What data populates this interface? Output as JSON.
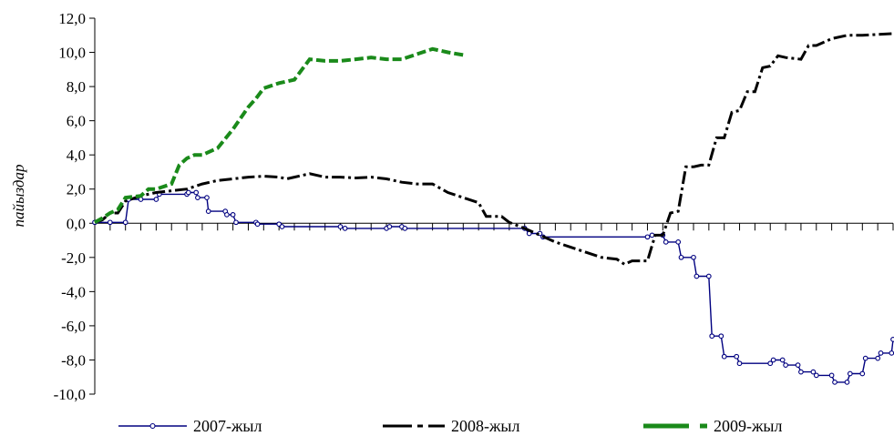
{
  "chart_data": {
    "type": "line",
    "title": "",
    "xlabel": "",
    "ylabel": "пайыздар",
    "ylim": [
      -10,
      12
    ],
    "yticks": [
      -10,
      -8,
      -6,
      -4,
      -2,
      0,
      2,
      4,
      6,
      8,
      10,
      12
    ],
    "ytick_labels": [
      "-10,0",
      "-8,0",
      "-6,0",
      "-4,0",
      "-2,0",
      "0,0",
      "2,0",
      "4,0",
      "6,0",
      "8,0",
      "10,0",
      "12,0"
    ],
    "x_range": [
      0,
      52
    ],
    "x_tick_count": 53,
    "grid": false,
    "legend_position": "bottom",
    "series": [
      {
        "name": "2007-жыл",
        "color": "#000080",
        "style": "line-markers",
        "points": [
          [
            0,
            0.05
          ],
          [
            1,
            0.05
          ],
          [
            2,
            0.05
          ],
          [
            2.2,
            1.4
          ],
          [
            3,
            1.4
          ],
          [
            4,
            1.4
          ],
          [
            4.2,
            1.7
          ],
          [
            6,
            1.7
          ],
          [
            6.1,
            1.8
          ],
          [
            6.6,
            1.8
          ],
          [
            6.7,
            1.5
          ],
          [
            7.3,
            1.5
          ],
          [
            7.4,
            0.7
          ],
          [
            8.5,
            0.7
          ],
          [
            8.6,
            0.5
          ],
          [
            9,
            0.5
          ],
          [
            9.2,
            0.05
          ],
          [
            10.5,
            0.05
          ],
          [
            10.6,
            -0.05
          ],
          [
            12,
            -0.05
          ],
          [
            12.2,
            -0.2
          ],
          [
            16,
            -0.2
          ],
          [
            16.3,
            -0.3
          ],
          [
            19,
            -0.3
          ],
          [
            19.2,
            -0.2
          ],
          [
            20,
            -0.2
          ],
          [
            20.2,
            -0.3
          ],
          [
            28,
            -0.3
          ],
          [
            28.3,
            -0.6
          ],
          [
            29,
            -0.6
          ],
          [
            29.2,
            -0.8
          ],
          [
            36,
            -0.8
          ],
          [
            36.3,
            -0.7
          ],
          [
            37,
            -0.7
          ],
          [
            37.2,
            -1.1
          ],
          [
            38,
            -1.1
          ],
          [
            38.2,
            -2.0
          ],
          [
            39,
            -2.0
          ],
          [
            39.2,
            -3.1
          ],
          [
            40,
            -3.1
          ],
          [
            40.2,
            -6.6
          ],
          [
            40.8,
            -6.6
          ],
          [
            41,
            -7.8
          ],
          [
            41.8,
            -7.8
          ],
          [
            42,
            -8.2
          ],
          [
            44,
            -8.2
          ],
          [
            44.2,
            -8.0
          ],
          [
            44.8,
            -8.0
          ],
          [
            45,
            -8.3
          ],
          [
            45.8,
            -8.3
          ],
          [
            46,
            -8.7
          ],
          [
            46.8,
            -8.7
          ],
          [
            47,
            -8.9
          ],
          [
            48,
            -8.9
          ],
          [
            48.2,
            -9.3
          ],
          [
            49,
            -9.3
          ],
          [
            49.2,
            -8.8
          ],
          [
            50,
            -8.8
          ],
          [
            50.2,
            -7.9
          ],
          [
            51,
            -7.9
          ],
          [
            51.2,
            -7.6
          ],
          [
            51.9,
            -7.6
          ],
          [
            52,
            -6.8
          ]
        ]
      },
      {
        "name": "2008-жыл",
        "color": "#000000",
        "style": "dash-dot",
        "points": [
          [
            0,
            0.05
          ],
          [
            0.5,
            0.2
          ],
          [
            1,
            0.6
          ],
          [
            1.5,
            0.6
          ],
          [
            2,
            1.3
          ],
          [
            3,
            1.6
          ],
          [
            4,
            1.8
          ],
          [
            5,
            1.9
          ],
          [
            6,
            2.0
          ],
          [
            7,
            2.3
          ],
          [
            8,
            2.5
          ],
          [
            9,
            2.6
          ],
          [
            10,
            2.7
          ],
          [
            11,
            2.75
          ],
          [
            12,
            2.7
          ],
          [
            12.5,
            2.6
          ],
          [
            13,
            2.7
          ],
          [
            14,
            2.9
          ],
          [
            15,
            2.7
          ],
          [
            16,
            2.7
          ],
          [
            17,
            2.65
          ],
          [
            18,
            2.7
          ],
          [
            19,
            2.6
          ],
          [
            20,
            2.4
          ],
          [
            21,
            2.3
          ],
          [
            22,
            2.3
          ],
          [
            23,
            1.8
          ],
          [
            24,
            1.5
          ],
          [
            25,
            1.2
          ],
          [
            25.5,
            0.4
          ],
          [
            26.5,
            0.4
          ],
          [
            27,
            0.05
          ],
          [
            28,
            -0.3
          ],
          [
            29,
            -0.7
          ],
          [
            30,
            -1.1
          ],
          [
            31,
            -1.4
          ],
          [
            32,
            -1.7
          ],
          [
            33,
            -2.0
          ],
          [
            34,
            -2.1
          ],
          [
            34.5,
            -2.4
          ],
          [
            35,
            -2.2
          ],
          [
            36,
            -2.2
          ],
          [
            36.5,
            -0.7
          ],
          [
            37,
            -0.7
          ],
          [
            37.5,
            0.6
          ],
          [
            38,
            0.7
          ],
          [
            38.5,
            3.3
          ],
          [
            39,
            3.3
          ],
          [
            39.5,
            3.4
          ],
          [
            40,
            3.4
          ],
          [
            40.5,
            5.0
          ],
          [
            41,
            5.0
          ],
          [
            41.5,
            6.5
          ],
          [
            42,
            6.6
          ],
          [
            42.5,
            7.7
          ],
          [
            43,
            7.7
          ],
          [
            43.5,
            9.1
          ],
          [
            44,
            9.2
          ],
          [
            44.5,
            9.8
          ],
          [
            45,
            9.7
          ],
          [
            46,
            9.6
          ],
          [
            46.5,
            10.4
          ],
          [
            47,
            10.4
          ],
          [
            48,
            10.8
          ],
          [
            49,
            11.0
          ],
          [
            50,
            11.0
          ],
          [
            51,
            11.05
          ],
          [
            52,
            11.1
          ]
        ]
      },
      {
        "name": "2009-жыл",
        "color": "#1a8a1a",
        "style": "dashed",
        "points": [
          [
            0,
            0.05
          ],
          [
            0.5,
            0.3
          ],
          [
            1,
            0.6
          ],
          [
            1.5,
            0.8
          ],
          [
            2,
            1.5
          ],
          [
            3,
            1.6
          ],
          [
            3.5,
            2.0
          ],
          [
            4,
            2.0
          ],
          [
            5,
            2.3
          ],
          [
            5.5,
            3.4
          ],
          [
            6,
            3.8
          ],
          [
            6.5,
            4.0
          ],
          [
            7,
            4.0
          ],
          [
            8,
            4.4
          ],
          [
            9,
            5.5
          ],
          [
            10,
            6.8
          ],
          [
            10.5,
            7.3
          ],
          [
            11,
            7.9
          ],
          [
            12,
            8.2
          ],
          [
            13,
            8.4
          ],
          [
            14,
            9.6
          ],
          [
            15,
            9.5
          ],
          [
            16,
            9.5
          ],
          [
            17,
            9.6
          ],
          [
            18,
            9.7
          ],
          [
            19,
            9.6
          ],
          [
            20,
            9.6
          ],
          [
            21,
            9.9
          ],
          [
            22,
            10.2
          ],
          [
            23,
            10.0
          ],
          [
            24,
            9.85
          ]
        ]
      }
    ]
  }
}
